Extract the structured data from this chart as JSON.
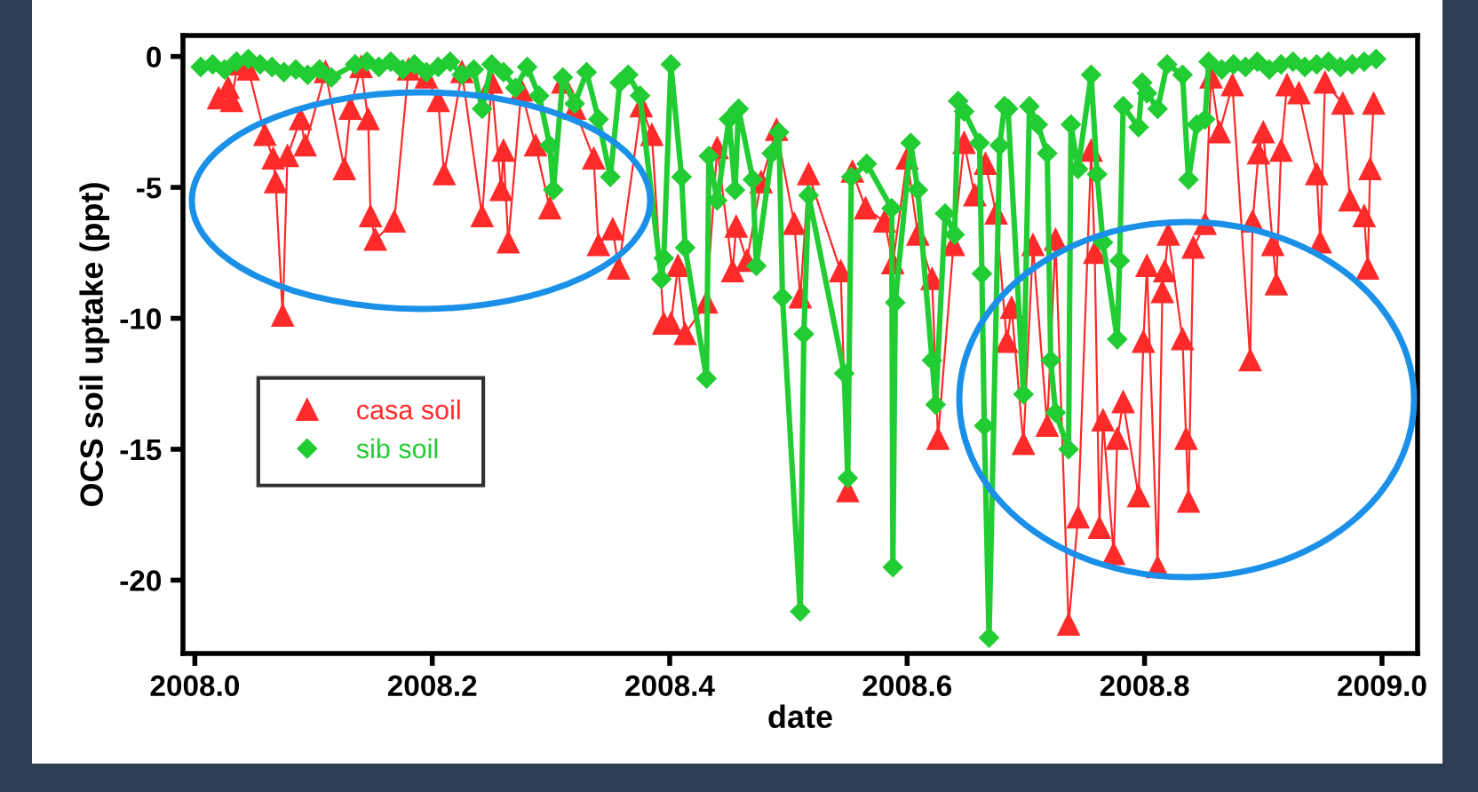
{
  "chart_data": {
    "type": "line",
    "xlabel": "date",
    "ylabel": "OCS soil uptake (ppt)",
    "xlim": [
      2007.99,
      2009.03
    ],
    "xticks": [
      {
        "value": 2008,
        "label": "2008.0"
      },
      2008.2,
      2008.4,
      2008.6,
      2008.8,
      {
        "value": 2009,
        "label": "2009.0"
      }
    ],
    "ylim": [
      -22.8,
      0.8
    ],
    "yticks": [
      0,
      -5,
      -10,
      -15,
      -20
    ],
    "grid": false,
    "legend": "bottom left",
    "line_style": "solid",
    "series": [
      {
        "name": "casa soil",
        "color": "#ff2a2a",
        "marker": "triangle",
        "x": [
          2008.02,
          2008.028,
          2008.031,
          2008.036,
          2008.045,
          2008.059,
          2008.066,
          2008.068,
          2008.074,
          2008.078,
          2008.089,
          2008.093,
          2008.11,
          2008.126,
          2008.131,
          2008.14,
          2008.146,
          2008.148,
          2008.152,
          2008.168,
          2008.18,
          2008.195,
          2008.205,
          2008.21,
          2008.225,
          2008.242,
          2008.25,
          2008.258,
          2008.26,
          2008.264,
          2008.275,
          2008.287,
          2008.299,
          2008.31,
          2008.32,
          2008.336,
          2008.34,
          2008.352,
          2008.357,
          2008.376,
          2008.385,
          2008.395,
          2008.401,
          2008.407,
          2008.413,
          2008.431,
          2008.44,
          2008.453,
          2008.456,
          2008.465,
          2008.477,
          2008.49,
          2008.505,
          2008.51,
          2008.517,
          2008.544,
          2008.55,
          2008.554,
          2008.565,
          2008.581,
          2008.588,
          2008.6,
          2008.609,
          2008.621,
          2008.626,
          2008.639,
          2008.648,
          2008.657,
          2008.666,
          2008.675,
          2008.684,
          2008.688,
          2008.698,
          2008.706,
          2008.718,
          2008.725,
          2008.736,
          2008.744,
          2008.755,
          2008.758,
          2008.762,
          2008.765,
          2008.774,
          2008.777,
          2008.782,
          2008.795,
          2008.799,
          2008.802,
          2008.811,
          2008.815,
          2008.817,
          2008.82,
          2008.832,
          2008.835,
          2008.837,
          2008.841,
          2008.851,
          2008.856,
          2008.863,
          2008.874,
          2008.889,
          2008.891,
          2008.896,
          2008.9,
          2008.908,
          2008.911,
          2008.915,
          2008.92,
          2008.93,
          2008.945,
          2008.948,
          2008.952,
          2008.967,
          2008.973,
          2008.985,
          2008.988,
          2008.99,
          2008.993
        ],
        "values": [
          -1.6,
          -1.2,
          -1.7,
          -0.3,
          -0.5,
          -3.0,
          -3.9,
          -4.8,
          -9.9,
          -3.8,
          -2.4,
          -3.4,
          -0.6,
          -4.3,
          -2.0,
          -0.4,
          -2.4,
          -6.1,
          -7.0,
          -6.3,
          -0.5,
          -0.8,
          -1.7,
          -4.5,
          -0.6,
          -6.1,
          -1.0,
          -5.1,
          -3.6,
          -7.1,
          -1.3,
          -3.4,
          -5.8,
          -1.0,
          -2.0,
          -3.9,
          -7.2,
          -6.6,
          -8.1,
          -1.9,
          -3.0,
          -10.2,
          -10.2,
          -8.0,
          -10.6,
          -9.4,
          -3.5,
          -8.2,
          -6.5,
          -7.8,
          -4.8,
          -2.8,
          -6.4,
          -9.2,
          -4.5,
          -8.2,
          -16.6,
          -4.4,
          -5.8,
          -6.3,
          -7.9,
          -3.9,
          -6.8,
          -8.5,
          -14.6,
          -7.2,
          -3.3,
          -5.3,
          -4.1,
          -6.0,
          -10.9,
          -9.6,
          -14.8,
          -7.2,
          -14.1,
          -7.0,
          -21.7,
          -17.6,
          -3.6,
          -7.5,
          -18.0,
          -13.9,
          -19.0,
          -14.6,
          -13.2,
          -16.8,
          -10.9,
          -8.0,
          -19.5,
          -9.0,
          -8.2,
          -6.8,
          -10.8,
          -14.6,
          -17.0,
          -7.3,
          -6.4,
          -0.8,
          -2.9,
          -1.1,
          -11.6,
          -6.3,
          -3.7,
          -2.9,
          -7.2,
          -8.7,
          -3.6,
          -1.1,
          -1.4,
          -4.5,
          -7.1,
          -1.0,
          -1.8,
          -5.5,
          -6.1,
          -8.1,
          -4.3,
          -1.8
        ]
      },
      {
        "name": "sib soil",
        "color": "#22cc33",
        "marker": "diamond",
        "x": [
          2008.005,
          2008.015,
          2008.025,
          2008.035,
          2008.045,
          2008.055,
          2008.065,
          2008.075,
          2008.085,
          2008.095,
          2008.105,
          2008.115,
          2008.135,
          2008.145,
          2008.155,
          2008.165,
          2008.175,
          2008.185,
          2008.195,
          2008.205,
          2008.215,
          2008.225,
          2008.235,
          2008.242,
          2008.25,
          2008.26,
          2008.27,
          2008.28,
          2008.29,
          2008.299,
          2008.302,
          2008.31,
          2008.32,
          2008.33,
          2008.34,
          2008.35,
          2008.358,
          2008.365,
          2008.375,
          2008.393,
          2008.395,
          2008.401,
          2008.41,
          2008.413,
          2008.431,
          2008.433,
          2008.44,
          2008.45,
          2008.455,
          2008.458,
          2008.47,
          2008.473,
          2008.486,
          2008.492,
          2008.495,
          2008.51,
          2008.513,
          2008.517,
          2008.547,
          2008.55,
          2008.553,
          2008.566,
          2008.587,
          2008.588,
          2008.59,
          2008.603,
          2008.609,
          2008.621,
          2008.624,
          2008.632,
          2008.64,
          2008.643,
          2008.648,
          2008.661,
          2008.663,
          2008.665,
          2008.669,
          2008.678,
          2008.682,
          2008.685,
          2008.698,
          2008.703,
          2008.71,
          2008.718,
          2008.721,
          2008.725,
          2008.736,
          2008.738,
          2008.744,
          2008.755,
          2008.76,
          2008.765,
          2008.777,
          2008.779,
          2008.782,
          2008.795,
          2008.798,
          2008.802,
          2008.811,
          2008.819,
          2008.832,
          2008.837,
          2008.844,
          2008.851,
          2008.854,
          2008.865,
          2008.875,
          2008.885,
          2008.895,
          2008.905,
          2008.915,
          2008.925,
          2008.935,
          2008.945,
          2008.955,
          2008.965,
          2008.975,
          2008.985,
          2008.995
        ],
        "values": [
          -0.4,
          -0.3,
          -0.5,
          -0.2,
          -0.1,
          -0.3,
          -0.4,
          -0.6,
          -0.5,
          -0.7,
          -0.5,
          -0.8,
          -0.3,
          -0.2,
          -0.4,
          -0.2,
          -0.5,
          -0.3,
          -0.6,
          -0.4,
          -0.2,
          -0.7,
          -0.5,
          -2.0,
          -0.3,
          -0.6,
          -1.2,
          -0.4,
          -1.5,
          -3.4,
          -5.1,
          -0.8,
          -1.8,
          -0.6,
          -2.4,
          -4.6,
          -1.0,
          -0.7,
          -1.5,
          -8.5,
          -7.7,
          -0.3,
          -4.6,
          -7.3,
          -12.3,
          -3.8,
          -5.5,
          -2.4,
          -5.1,
          -2.0,
          -4.7,
          -8.0,
          -3.7,
          -2.9,
          -9.2,
          -21.2,
          -10.6,
          -5.3,
          -12.1,
          -16.1,
          -4.6,
          -4.1,
          -5.8,
          -19.5,
          -9.4,
          -3.3,
          -5.1,
          -11.6,
          -13.3,
          -6.0,
          -6.8,
          -1.7,
          -2.1,
          -3.3,
          -8.3,
          -14.1,
          -22.2,
          -3.4,
          -1.9,
          -2.0,
          -12.9,
          -1.9,
          -2.6,
          -3.7,
          -11.6,
          -13.6,
          -15.0,
          -2.6,
          -4.3,
          -0.7,
          -4.5,
          -7.1,
          -10.8,
          -7.8,
          -1.9,
          -2.7,
          -1.0,
          -1.4,
          -2.0,
          -0.3,
          -0.7,
          -4.7,
          -2.6,
          -2.4,
          -0.2,
          -0.5,
          -0.3,
          -0.4,
          -0.2,
          -0.5,
          -0.3,
          -0.2,
          -0.4,
          -0.3,
          -0.2,
          -0.4,
          -0.3,
          -0.2,
          -0.1
        ]
      }
    ]
  }
}
